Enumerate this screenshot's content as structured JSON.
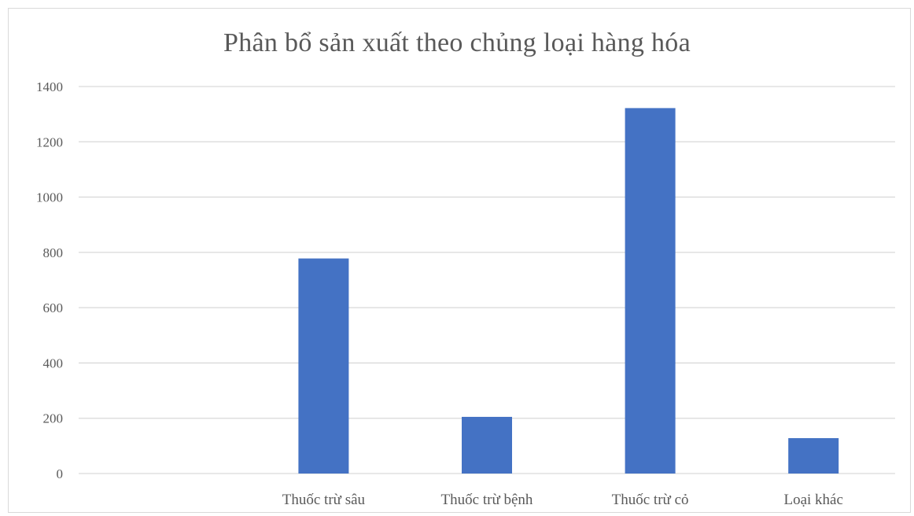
{
  "chart_data": {
    "type": "bar",
    "title": "Phân bổ sản xuất theo chủng loại hàng hóa",
    "xlabel": "",
    "ylabel": "",
    "categories": [
      "",
      "Thuốc trừ sâu",
      "Thuốc trừ bệnh",
      "Thuốc trừ cỏ",
      "Loại khác"
    ],
    "values": [
      0,
      778,
      205,
      1322,
      128
    ],
    "ylim": [
      0,
      1400
    ],
    "yticks": [
      0,
      200,
      400,
      600,
      800,
      1000,
      1200,
      1400
    ],
    "grid": true,
    "legend": "none",
    "colors": {
      "bar": "#4472C4",
      "grid": "#d9d9d9",
      "text": "#595959"
    }
  }
}
